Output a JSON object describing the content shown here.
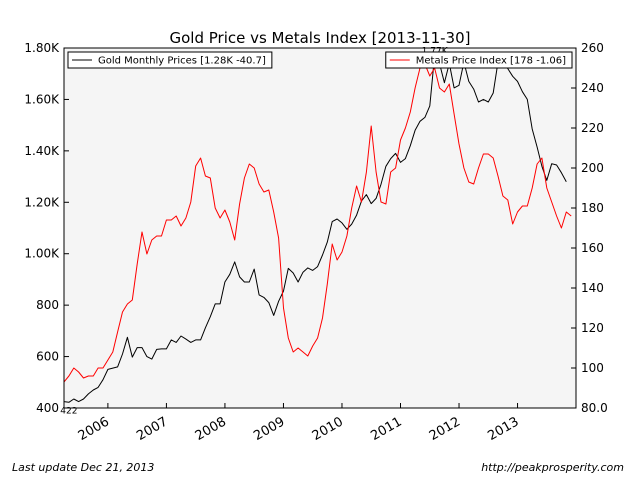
{
  "chart_data": {
    "type": "line",
    "title": "Gold Price vs Metals Index  [2013-11-30]",
    "x_tick_labels": [
      "2006",
      "2007",
      "2008",
      "2009",
      "2010",
      "2011",
      "2012",
      "2013"
    ],
    "y_left": {
      "ticks": [
        400,
        600,
        800,
        1000,
        1200,
        1400,
        1600,
        1800
      ],
      "tick_labels": [
        "400",
        "600",
        "800",
        "1.00K",
        "1.20K",
        "1.40K",
        "1.60K",
        "1.80K"
      ],
      "range": [
        400,
        1800
      ]
    },
    "y_right": {
      "ticks": [
        80,
        100,
        120,
        140,
        160,
        180,
        200,
        220,
        240,
        260
      ],
      "tick_labels": [
        "80.0",
        "100",
        "120",
        "140",
        "160",
        "180",
        "200",
        "220",
        "240",
        "260"
      ],
      "range": [
        80,
        260
      ]
    },
    "x_range": [
      "2005-04-01",
      "2013-12-31"
    ],
    "grid": false,
    "series": [
      {
        "name": "Gold Monthly Prices [1.28K -40.7]",
        "axis": "left",
        "color": "#000000",
        "points": [
          [
            "2005-04-01",
            425
          ],
          [
            "2005-05-01",
            422
          ],
          [
            "2005-06-01",
            435
          ],
          [
            "2005-07-01",
            425
          ],
          [
            "2005-08-01",
            435
          ],
          [
            "2005-09-01",
            455
          ],
          [
            "2005-10-01",
            470
          ],
          [
            "2005-11-01",
            480
          ],
          [
            "2005-12-01",
            510
          ],
          [
            "2006-01-01",
            550
          ],
          [
            "2006-02-01",
            555
          ],
          [
            "2006-03-01",
            560
          ],
          [
            "2006-04-01",
            610
          ],
          [
            "2006-05-01",
            675
          ],
          [
            "2006-06-01",
            598
          ],
          [
            "2006-07-01",
            635
          ],
          [
            "2006-08-01",
            635
          ],
          [
            "2006-09-01",
            600
          ],
          [
            "2006-10-01",
            590
          ],
          [
            "2006-11-01",
            628
          ],
          [
            "2006-12-01",
            630
          ],
          [
            "2007-01-01",
            630
          ],
          [
            "2007-02-01",
            665
          ],
          [
            "2007-03-01",
            655
          ],
          [
            "2007-04-01",
            680
          ],
          [
            "2007-05-01",
            668
          ],
          [
            "2007-06-01",
            655
          ],
          [
            "2007-07-01",
            665
          ],
          [
            "2007-08-01",
            665
          ],
          [
            "2007-09-01",
            712
          ],
          [
            "2007-10-01",
            755
          ],
          [
            "2007-11-01",
            805
          ],
          [
            "2007-12-01",
            805
          ],
          [
            "2008-01-01",
            890
          ],
          [
            "2008-02-01",
            920
          ],
          [
            "2008-03-01",
            968
          ],
          [
            "2008-04-01",
            910
          ],
          [
            "2008-05-01",
            890
          ],
          [
            "2008-06-01",
            890
          ],
          [
            "2008-07-01",
            940
          ],
          [
            "2008-08-01",
            840
          ],
          [
            "2008-09-01",
            830
          ],
          [
            "2008-10-01",
            810
          ],
          [
            "2008-11-01",
            760
          ],
          [
            "2008-12-01",
            815
          ],
          [
            "2009-01-01",
            855
          ],
          [
            "2009-02-01",
            943
          ],
          [
            "2009-03-01",
            925
          ],
          [
            "2009-04-01",
            890
          ],
          [
            "2009-05-01",
            928
          ],
          [
            "2009-06-01",
            945
          ],
          [
            "2009-07-01",
            935
          ],
          [
            "2009-08-01",
            950
          ],
          [
            "2009-09-01",
            995
          ],
          [
            "2009-10-01",
            1045
          ],
          [
            "2009-11-01",
            1125
          ],
          [
            "2009-12-01",
            1135
          ],
          [
            "2010-01-01",
            1120
          ],
          [
            "2010-02-01",
            1095
          ],
          [
            "2010-03-01",
            1115
          ],
          [
            "2010-04-01",
            1150
          ],
          [
            "2010-05-01",
            1205
          ],
          [
            "2010-06-01",
            1230
          ],
          [
            "2010-07-01",
            1195
          ],
          [
            "2010-08-01",
            1215
          ],
          [
            "2010-09-01",
            1270
          ],
          [
            "2010-10-01",
            1340
          ],
          [
            "2010-11-01",
            1370
          ],
          [
            "2010-12-01",
            1390
          ],
          [
            "2011-01-01",
            1355
          ],
          [
            "2011-02-01",
            1370
          ],
          [
            "2011-03-01",
            1420
          ],
          [
            "2011-04-01",
            1480
          ],
          [
            "2011-05-01",
            1515
          ],
          [
            "2011-06-01",
            1530
          ],
          [
            "2011-07-01",
            1575
          ],
          [
            "2011-08-01",
            1770
          ],
          [
            "2011-09-01",
            1740
          ],
          [
            "2011-10-01",
            1665
          ],
          [
            "2011-11-01",
            1740
          ],
          [
            "2011-12-01",
            1645
          ],
          [
            "2012-01-01",
            1655
          ],
          [
            "2012-02-01",
            1745
          ],
          [
            "2012-03-01",
            1670
          ],
          [
            "2012-04-01",
            1640
          ],
          [
            "2012-05-01",
            1590
          ],
          [
            "2012-06-01",
            1600
          ],
          [
            "2012-07-01",
            1590
          ],
          [
            "2012-08-01",
            1625
          ],
          [
            "2012-09-01",
            1745
          ],
          [
            "2012-10-01",
            1745
          ],
          [
            "2012-11-01",
            1720
          ],
          [
            "2012-12-01",
            1690
          ],
          [
            "2013-01-01",
            1670
          ],
          [
            "2013-02-01",
            1630
          ],
          [
            "2013-03-01",
            1600
          ],
          [
            "2013-04-01",
            1485
          ],
          [
            "2013-05-01",
            1415
          ],
          [
            "2013-06-01",
            1340
          ],
          [
            "2013-07-01",
            1285
          ],
          [
            "2013-08-01",
            1350
          ],
          [
            "2013-09-01",
            1345
          ],
          [
            "2013-10-01",
            1315
          ],
          [
            "2013-11-01",
            1280
          ]
        ]
      },
      {
        "name": "Metals Price Index [178 -1.06]",
        "axis": "right",
        "color": "#ff0000",
        "points": [
          [
            "2005-04-01",
            93
          ],
          [
            "2005-05-01",
            96
          ],
          [
            "2005-06-01",
            100
          ],
          [
            "2005-07-01",
            98
          ],
          [
            "2005-08-01",
            95
          ],
          [
            "2005-09-01",
            96
          ],
          [
            "2005-10-01",
            96
          ],
          [
            "2005-11-01",
            100
          ],
          [
            "2005-12-01",
            100
          ],
          [
            "2006-01-01",
            104
          ],
          [
            "2006-02-01",
            108
          ],
          [
            "2006-03-01",
            118
          ],
          [
            "2006-04-01",
            128
          ],
          [
            "2006-05-01",
            132
          ],
          [
            "2006-06-01",
            134
          ],
          [
            "2006-07-01",
            152
          ],
          [
            "2006-08-01",
            168
          ],
          [
            "2006-09-01",
            157
          ],
          [
            "2006-10-01",
            164
          ],
          [
            "2006-11-01",
            166
          ],
          [
            "2006-12-01",
            166
          ],
          [
            "2007-01-01",
            174
          ],
          [
            "2007-02-01",
            174
          ],
          [
            "2007-03-01",
            176
          ],
          [
            "2007-04-01",
            171
          ],
          [
            "2007-05-01",
            175
          ],
          [
            "2007-06-01",
            183
          ],
          [
            "2007-07-01",
            201
          ],
          [
            "2007-08-01",
            205
          ],
          [
            "2007-09-01",
            196
          ],
          [
            "2007-10-01",
            195
          ],
          [
            "2007-11-01",
            180
          ],
          [
            "2007-12-01",
            175
          ],
          [
            "2008-01-01",
            179
          ],
          [
            "2008-02-01",
            173
          ],
          [
            "2008-03-01",
            164
          ],
          [
            "2008-04-01",
            182
          ],
          [
            "2008-05-01",
            195
          ],
          [
            "2008-06-01",
            202
          ],
          [
            "2008-07-01",
            200
          ],
          [
            "2008-08-01",
            192
          ],
          [
            "2008-09-01",
            188
          ],
          [
            "2008-10-01",
            189
          ],
          [
            "2008-11-01",
            178
          ],
          [
            "2008-12-01",
            165
          ],
          [
            "2009-01-01",
            130
          ],
          [
            "2009-02-01",
            115
          ],
          [
            "2009-03-01",
            108
          ],
          [
            "2009-04-01",
            110
          ],
          [
            "2009-05-01",
            108
          ],
          [
            "2009-06-01",
            106
          ],
          [
            "2009-07-01",
            111
          ],
          [
            "2009-08-01",
            115
          ],
          [
            "2009-09-01",
            125
          ],
          [
            "2009-10-01",
            142
          ],
          [
            "2009-11-01",
            162
          ],
          [
            "2009-12-01",
            154
          ],
          [
            "2010-01-01",
            158
          ],
          [
            "2010-02-01",
            166
          ],
          [
            "2010-03-01",
            180
          ],
          [
            "2010-04-01",
            191
          ],
          [
            "2010-05-01",
            183
          ],
          [
            "2010-06-01",
            198
          ],
          [
            "2010-07-01",
            221
          ],
          [
            "2010-08-01",
            198
          ],
          [
            "2010-09-01",
            183
          ],
          [
            "2010-10-01",
            182
          ],
          [
            "2010-11-01",
            198
          ],
          [
            "2010-12-01",
            200
          ],
          [
            "2011-01-01",
            214
          ],
          [
            "2011-02-01",
            220
          ],
          [
            "2011-03-01",
            228
          ],
          [
            "2011-04-01",
            240
          ],
          [
            "2011-05-01",
            250
          ],
          [
            "2011-06-01",
            252
          ],
          [
            "2011-07-01",
            246
          ],
          [
            "2011-08-01",
            250
          ],
          [
            "2011-09-01",
            240
          ],
          [
            "2011-10-01",
            238
          ],
          [
            "2011-11-01",
            242
          ],
          [
            "2011-12-01",
            227
          ],
          [
            "2012-01-01",
            212
          ],
          [
            "2012-02-01",
            200
          ],
          [
            "2012-03-01",
            193
          ],
          [
            "2012-04-01",
            192
          ],
          [
            "2012-05-01",
            200
          ],
          [
            "2012-06-01",
            207
          ],
          [
            "2012-07-01",
            207
          ],
          [
            "2012-08-01",
            205
          ],
          [
            "2012-09-01",
            196
          ],
          [
            "2012-10-01",
            186
          ],
          [
            "2012-11-01",
            184
          ],
          [
            "2012-12-01",
            172
          ],
          [
            "2013-01-01",
            178
          ],
          [
            "2013-02-01",
            181
          ],
          [
            "2013-03-01",
            181
          ],
          [
            "2013-04-01",
            190
          ],
          [
            "2013-05-01",
            202
          ],
          [
            "2013-06-01",
            205
          ],
          [
            "2013-07-01",
            190
          ],
          [
            "2013-08-01",
            183
          ],
          [
            "2013-09-01",
            176
          ],
          [
            "2013-10-01",
            170
          ],
          [
            "2013-11-01",
            178
          ],
          [
            "2013-12-01",
            176
          ]
        ]
      }
    ],
    "annotations": [
      {
        "text": "422",
        "x": "2005-05-01",
        "y": 422,
        "axis": "left"
      },
      {
        "text": "1.77K",
        "x": "2011-08-01",
        "y": 1770,
        "axis": "left"
      }
    ],
    "legends": [
      {
        "placement": "top-left",
        "series": 0
      },
      {
        "placement": "top-right",
        "series": 1
      }
    ]
  },
  "footer": {
    "left": "Last update Dec 21, 2013",
    "right": "http://peakprosperity.com"
  }
}
